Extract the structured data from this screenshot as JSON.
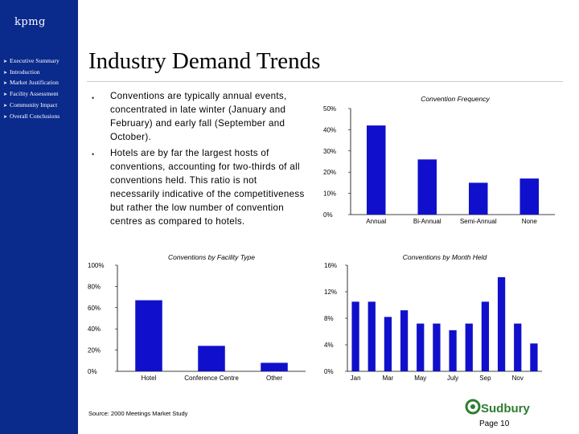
{
  "sidebar": {
    "logo": "kpmg",
    "items": [
      {
        "label": "Executive Summary"
      },
      {
        "label": "Introduction"
      },
      {
        "label": "Market Justification"
      },
      {
        "label": "Facility Assessment"
      },
      {
        "label": "Community Impact"
      },
      {
        "label": "Overall Conclusions"
      }
    ]
  },
  "colors": {
    "sidebar": "#0a2a8c",
    "bars": "#1010cc",
    "brand_green": "#2e7d32"
  },
  "title": "Industry Demand Trends",
  "bullets": [
    "Conventions are typically annual events, concentrated in late winter (January and February) and early fall (September and October).",
    "Hotels are by far the largest hosts of conventions, accounting for two-thirds of all conventions held.  This ratio is not necessarily indicative of the competitiveness but rather the low number of convention centres as compared to hotels."
  ],
  "chart_data": [
    {
      "type": "bar",
      "title": "Convention Frequency",
      "categories": [
        "Annual",
        "Bi-Annual",
        "Semi-Annual",
        "None"
      ],
      "values": [
        42,
        26,
        15,
        17
      ],
      "ylim": [
        0,
        50
      ],
      "yticks": [
        "0%",
        "10%",
        "20%",
        "30%",
        "40%",
        "50%"
      ],
      "grid": false
    },
    {
      "type": "bar",
      "title": "Conventions by Facility Type",
      "categories": [
        "Hotel",
        "Conference Centre",
        "Other"
      ],
      "values": [
        67,
        24,
        8
      ],
      "ylim": [
        0,
        100
      ],
      "yticks": [
        "0%",
        "20%",
        "40%",
        "60%",
        "80%",
        "100%"
      ],
      "grid": false
    },
    {
      "type": "bar",
      "title": "Conventions by Month Held",
      "categories": [
        "Jan",
        "Feb",
        "Mar",
        "Apr",
        "May",
        "Jun",
        "July",
        "Aug",
        "Sep",
        "Oct",
        "Nov",
        "Dec"
      ],
      "category_labels": [
        "Jan",
        "",
        "Mar",
        "",
        "May",
        "",
        "July",
        "",
        "Sep",
        "",
        "Nov",
        ""
      ],
      "values": [
        10.5,
        10.5,
        8.2,
        9.2,
        7.2,
        7.2,
        6.2,
        7.2,
        10.5,
        14.2,
        7.2,
        4.2
      ],
      "ylim": [
        0,
        16
      ],
      "yticks": [
        "0%",
        "4%",
        "8%",
        "12%",
        "16%"
      ],
      "grid": false
    }
  ],
  "footer": {
    "source": "Source: 2000 Meetings Market Study",
    "brand": "Sudbury",
    "page": "Page 10"
  }
}
